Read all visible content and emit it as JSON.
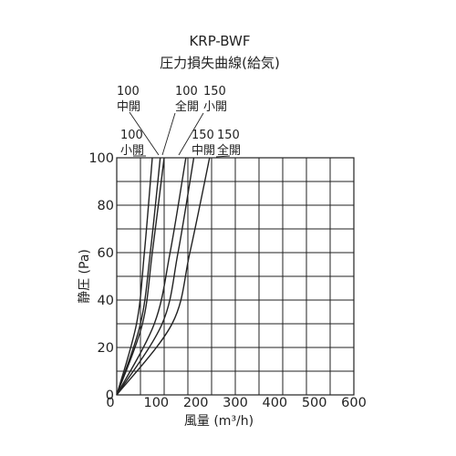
{
  "chart_data": {
    "type": "line",
    "title": "KRP-BWF",
    "subtitle": "圧力損失曲線(給気)",
    "xlabel": "風量 (m³/h)",
    "ylabel": "静圧 (Pa)",
    "xlim": [
      0,
      600
    ],
    "ylim": [
      0,
      100
    ],
    "x_ticks": [
      "0",
      "100",
      "200",
      "300",
      "400",
      "500",
      "600"
    ],
    "y_ticks": [
      "0",
      "20",
      "40",
      "60",
      "80",
      "100"
    ],
    "grid": true,
    "series": [
      {
        "name": "100 小開",
        "label_lines": [
          "100",
          "小開"
        ],
        "x": [
          0,
          50,
          70,
          90
        ],
        "y": [
          0,
          30,
          60,
          100
        ]
      },
      {
        "name": "100 中開",
        "label_lines": [
          "100",
          "中開"
        ],
        "x": [
          0,
          60,
          85,
          110
        ],
        "y": [
          0,
          30,
          60,
          100
        ]
      },
      {
        "name": "100 全開",
        "label_lines": [
          "100",
          "全開"
        ],
        "x": [
          0,
          65,
          90,
          120
        ],
        "y": [
          0,
          30,
          60,
          100
        ]
      },
      {
        "name": "150 小開",
        "label_lines": [
          "150",
          "小開"
        ],
        "x": [
          0,
          95,
          135,
          175
        ],
        "y": [
          0,
          30,
          60,
          100
        ]
      },
      {
        "name": "150 中開",
        "label_lines": [
          "150",
          "中開"
        ],
        "x": [
          0,
          115,
          155,
          195
        ],
        "y": [
          0,
          30,
          60,
          100
        ]
      },
      {
        "name": "150 全開",
        "label_lines": [
          "150",
          "全開"
        ],
        "x": [
          0,
          140,
          185,
          235
        ],
        "y": [
          0,
          30,
          60,
          100
        ]
      }
    ]
  }
}
